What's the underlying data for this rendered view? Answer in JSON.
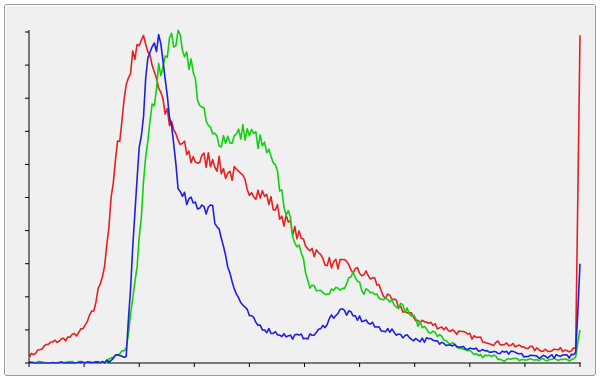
{
  "chart_data": {
    "type": "line",
    "title": "",
    "xlabel": "",
    "ylabel": "",
    "xlim": [
      0,
      255
    ],
    "ylim": [
      0,
      100
    ],
    "grid": false,
    "legend": "none",
    "x": [
      0,
      5,
      10,
      15,
      20,
      25,
      30,
      35,
      40,
      45,
      50,
      55,
      60,
      65,
      70,
      75,
      80,
      85,
      90,
      95,
      100,
      105,
      110,
      115,
      120,
      125,
      130,
      135,
      140,
      145,
      150,
      155,
      160,
      165,
      170,
      175,
      180,
      185,
      190,
      195,
      200,
      205,
      210,
      215,
      220,
      225,
      230,
      235,
      240,
      245,
      250,
      253,
      255
    ],
    "series": [
      {
        "color": "#e52020",
        "values": [
          2,
          4,
          6,
          7,
          8,
          10,
          16,
          30,
          60,
          84,
          97,
          96,
          84,
          72,
          66,
          62,
          61,
          62,
          58,
          57,
          54,
          52,
          50,
          46,
          42,
          38,
          35,
          32,
          30,
          30,
          28,
          27,
          25,
          20,
          18,
          15,
          13,
          12,
          11,
          10,
          9,
          8,
          7,
          6,
          6,
          5,
          5,
          4,
          4,
          4,
          4,
          5,
          99
        ]
      },
      {
        "color": "#10d010",
        "values": [
          0,
          0,
          0,
          0,
          0,
          0,
          0,
          0,
          2,
          4,
          30,
          68,
          88,
          97,
          98,
          90,
          76,
          68,
          68,
          68,
          70,
          68,
          64,
          56,
          44,
          34,
          24,
          22,
          22,
          22,
          26,
          22,
          21,
          20,
          18,
          16,
          12,
          10,
          8,
          6,
          4,
          3,
          2,
          2,
          1,
          1,
          1,
          1,
          1,
          1,
          1,
          2,
          10
        ]
      },
      {
        "color": "#2020dc",
        "values": [
          0,
          0,
          0,
          0,
          0,
          0,
          0,
          0,
          2,
          2,
          55,
          92,
          98,
          76,
          50,
          48,
          48,
          46,
          36,
          22,
          16,
          12,
          10,
          9,
          8,
          8,
          8,
          10,
          14,
          16,
          14,
          13,
          11,
          10,
          9,
          8,
          7,
          7,
          6,
          6,
          5,
          4,
          4,
          3,
          3,
          3,
          2,
          2,
          2,
          2,
          2,
          3,
          30
        ]
      }
    ]
  }
}
